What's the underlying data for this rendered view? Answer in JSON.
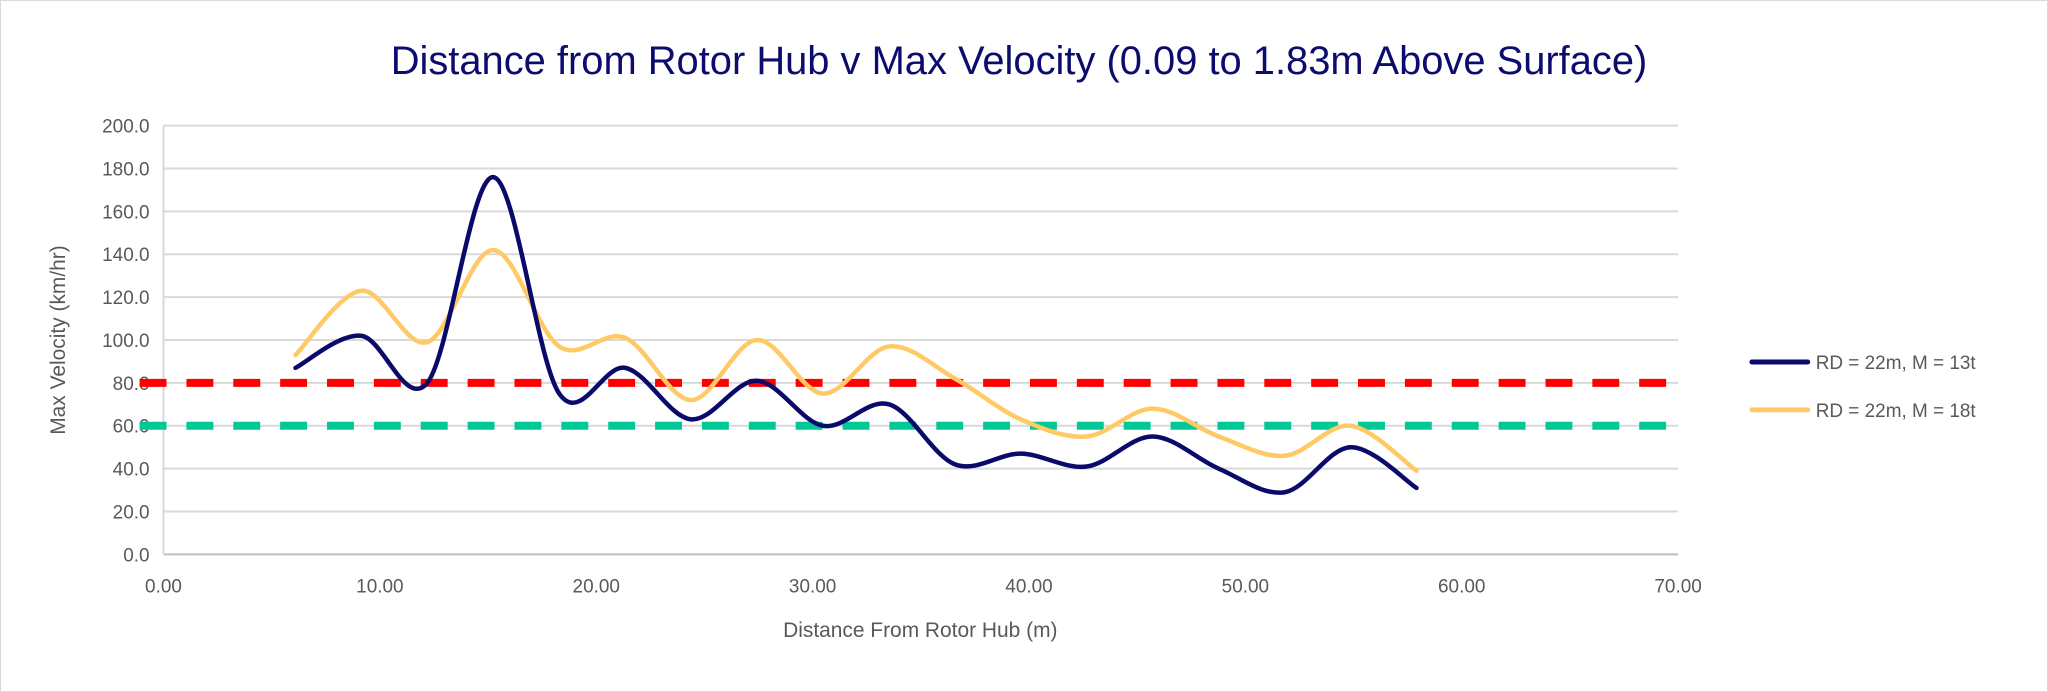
{
  "chart_data": {
    "type": "line",
    "title": "Distance from Rotor Hub v Max Velocity (0.09 to 1.83m Above Surface)",
    "xlabel": "Distance From Rotor Hub (m)",
    "ylabel": "Max Velocity (km/hr)",
    "xlim": [
      0,
      70
    ],
    "ylim": [
      0,
      200
    ],
    "xticks": [
      "0.00",
      "10.00",
      "20.00",
      "30.00",
      "40.00",
      "50.00",
      "60.00",
      "70.00"
    ],
    "yticks": [
      "0.0",
      "20.0",
      "40.0",
      "60.0",
      "80.0",
      "100.0",
      "120.0",
      "140.0",
      "160.0",
      "180.0",
      "200.0"
    ],
    "grid": true,
    "smoothed": true,
    "legend_position": "right",
    "x": [
      6.1,
      9.14,
      12.19,
      15.24,
      18.29,
      21.34,
      24.38,
      27.43,
      30.48,
      33.53,
      36.58,
      39.62,
      42.67,
      45.72,
      48.77,
      51.82,
      54.86,
      57.91
    ],
    "series": [
      {
        "name": "RD = 22m, M = 13t",
        "color": "#0a0a6b",
        "values": [
          87,
          102,
          80,
          176,
          75,
          87,
          63,
          81,
          60,
          70,
          42,
          47,
          41,
          55,
          40,
          29,
          50,
          31
        ]
      },
      {
        "name": "RD = 22m, M = 18t",
        "color": "#ffc966",
        "values": [
          93,
          123,
          99,
          142,
          97,
          101,
          72,
          100,
          75,
          97,
          82,
          63,
          55,
          68,
          55,
          46,
          60,
          39
        ]
      }
    ],
    "reference_lines": [
      {
        "value": 80,
        "color": "#ff0000",
        "style": "dashed"
      },
      {
        "value": 60,
        "color": "#00c896",
        "style": "dashed"
      }
    ]
  }
}
